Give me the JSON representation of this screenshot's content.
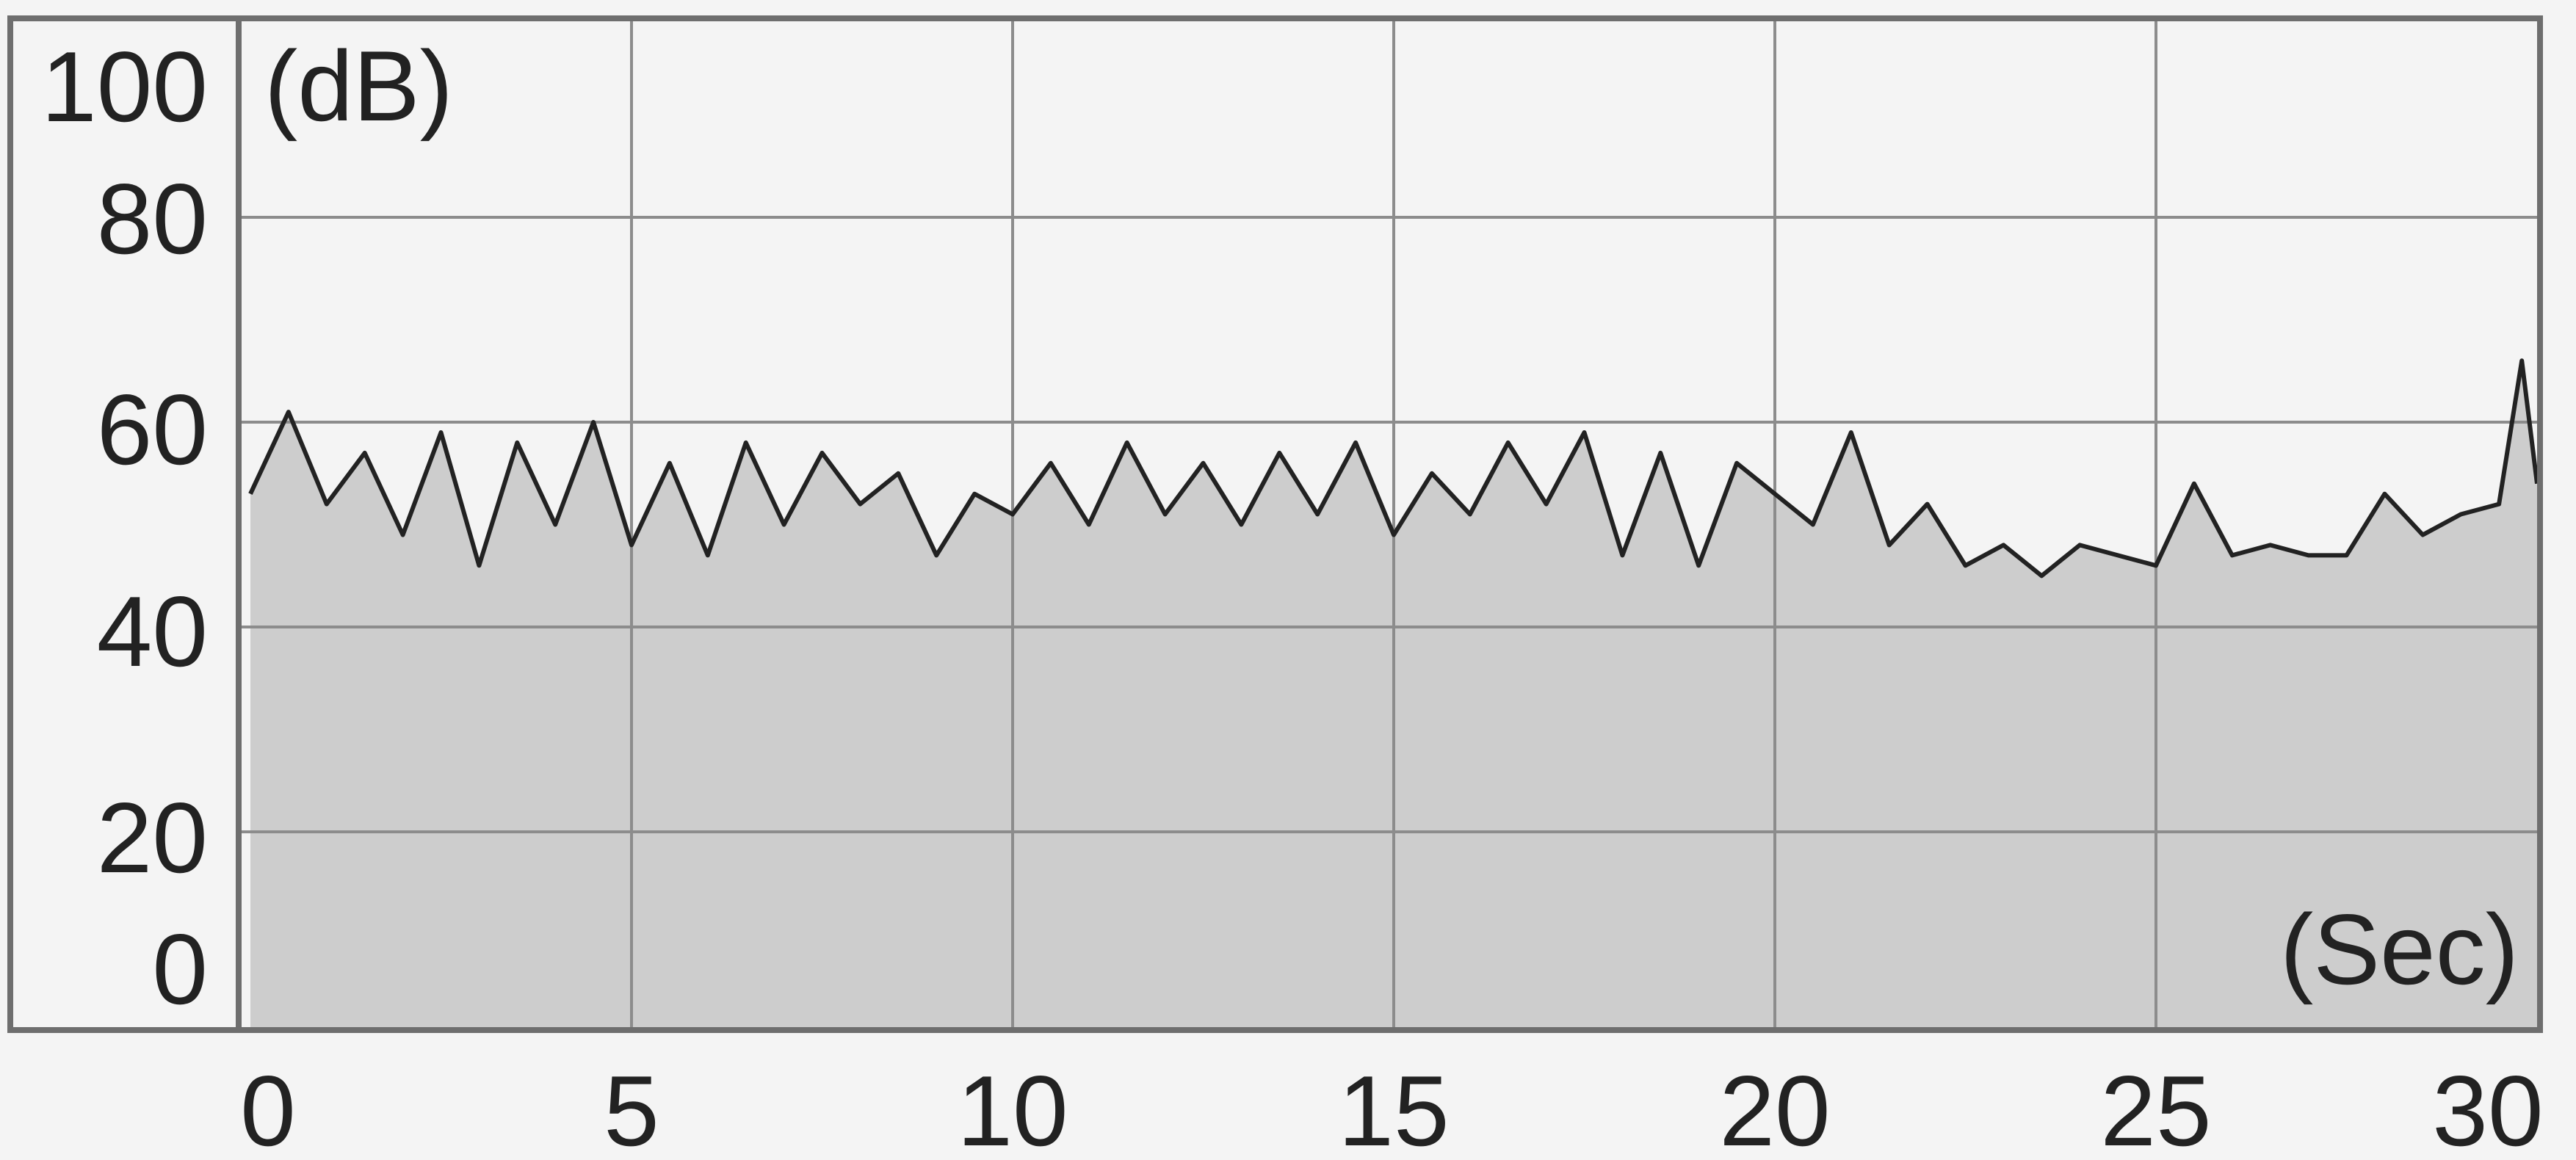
{
  "chart_data": {
    "type": "area",
    "y_unit": "(dB)",
    "x_unit": "(Sec)",
    "xlim": [
      0,
      30
    ],
    "ylim": [
      0,
      100
    ],
    "x_ticks": [
      "0",
      "5",
      "10",
      "15",
      "20",
      "25",
      "30"
    ],
    "y_ticks": [
      "100",
      "80",
      "60",
      "40",
      "20",
      "0"
    ],
    "grid": true,
    "colors": {
      "line": "#222222",
      "fill": "#cdcdcd",
      "grid": "#8c8c8c",
      "frame": "#6e6e6e",
      "background": "#f4f4f4"
    },
    "series": [
      {
        "x": [
          0.0,
          0.5,
          1.0,
          1.5,
          2.0,
          2.5,
          3.0,
          3.5,
          4.0,
          4.5,
          5.0,
          5.5,
          6.0,
          6.5,
          7.0,
          7.5,
          8.0,
          8.5,
          9.0,
          9.5,
          10.0,
          10.5,
          11.0,
          11.5,
          12.0,
          12.5,
          13.0,
          13.5,
          14.0,
          14.5,
          15.0,
          15.5,
          16.0,
          16.5,
          17.0,
          17.5,
          18.0,
          18.5,
          19.0,
          19.5,
          20.0,
          20.5,
          21.0,
          21.5,
          22.0,
          22.5,
          23.0,
          23.5,
          24.0,
          24.5,
          25.0,
          25.5,
          26.0,
          26.5,
          27.0,
          27.5,
          28.0,
          28.5,
          29.0,
          29.5,
          29.8,
          30.0
        ],
        "y": [
          53,
          61,
          52,
          57,
          49,
          59,
          46,
          58,
          50,
          60,
          48,
          56,
          47,
          58,
          50,
          57,
          52,
          55,
          47,
          53,
          51,
          56,
          50,
          58,
          51,
          56,
          50,
          57,
          51,
          58,
          49,
          55,
          51,
          58,
          52,
          59,
          47,
          57,
          46,
          56,
          53,
          50,
          59,
          48,
          52,
          46,
          48,
          45,
          48,
          47,
          46,
          54,
          47,
          48,
          47,
          47,
          53,
          49,
          51,
          52,
          66,
          54
        ]
      }
    ]
  }
}
